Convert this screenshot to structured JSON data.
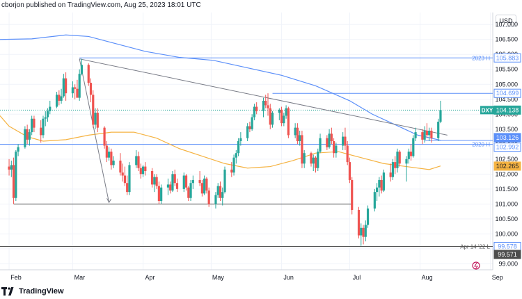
{
  "header": {
    "text": "cborjon published on TradingView.com, Aug 25, 2023 18:01 UTC"
  },
  "footer": {
    "brand": "TradingView"
  },
  "currency": "USD",
  "colors": {
    "up": "#26a69a",
    "down": "#ef5350",
    "sma_long": "#5b8ff9",
    "sma_short": "#f5b342",
    "hline": "#5b8ff9",
    "trend": "#787b86",
    "grid": "#f0f3fa"
  },
  "chart_data": {
    "type": "candlestick",
    "symbol": "DXY",
    "y_ticks": [
      "107.000",
      "106.500",
      "106.000",
      "105.500",
      "105.000",
      "104.500",
      "104.000",
      "103.500",
      "103.000",
      "102.500",
      "102.000",
      "101.500",
      "101.000",
      "100.500",
      "100.000",
      "99.500",
      "99.000"
    ],
    "ylim": [
      98.8,
      107.4
    ],
    "x_ticks": [
      {
        "label": "Feb",
        "day": 0
      },
      {
        "label": "Mar",
        "day": 28
      },
      {
        "label": "Apr",
        "day": 59
      },
      {
        "label": "May",
        "day": 89
      },
      {
        "label": "Jun",
        "day": 120
      },
      {
        "label": "Jul",
        "day": 150
      },
      {
        "label": "Aug",
        "day": 181
      },
      {
        "label": "Sep",
        "day": 212
      }
    ],
    "xlim": [
      -4,
      213
    ],
    "candles": [
      [
        0,
        102.25,
        102.5,
        101.95,
        102.15
      ],
      [
        1,
        102.15,
        102.45,
        101.9,
        102.3
      ],
      [
        2,
        102.3,
        102.55,
        101.0,
        101.2
      ],
      [
        3,
        101.2,
        102.8,
        101.1,
        102.75
      ],
      [
        4,
        102.75,
        103.0,
        102.6,
        102.9
      ],
      [
        7,
        102.9,
        103.6,
        102.85,
        103.5
      ],
      [
        8,
        103.5,
        103.65,
        103.0,
        103.15
      ],
      [
        9,
        103.15,
        103.5,
        102.95,
        103.4
      ],
      [
        10,
        103.4,
        103.95,
        103.3,
        103.85
      ],
      [
        11,
        103.85,
        103.95,
        103.4,
        103.55
      ],
      [
        14,
        103.55,
        103.8,
        103.05,
        103.3
      ],
      [
        15,
        103.3,
        103.95,
        103.2,
        103.85
      ],
      [
        16,
        103.85,
        104.1,
        103.6,
        103.9
      ],
      [
        17,
        103.9,
        104.2,
        103.75,
        104.1
      ],
      [
        18,
        104.1,
        104.45,
        104.0,
        104.25
      ],
      [
        21,
        104.25,
        104.75,
        104.2,
        104.65
      ],
      [
        22,
        104.65,
        104.8,
        104.3,
        104.45
      ],
      [
        23,
        104.45,
        104.85,
        104.35,
        104.6
      ],
      [
        24,
        104.6,
        105.35,
        104.55,
        105.2
      ],
      [
        25,
        105.2,
        105.4,
        104.45,
        104.7
      ],
      [
        28,
        104.7,
        105.1,
        104.55,
        104.9
      ],
      [
        29,
        104.9,
        105.0,
        104.5,
        104.85
      ],
      [
        30,
        104.85,
        105.15,
        104.6,
        104.55
      ],
      [
        31,
        104.55,
        105.5,
        104.45,
        105.35
      ],
      [
        32,
        105.35,
        105.85,
        105.3,
        105.65
      ],
      [
        35,
        105.65,
        105.7,
        104.95,
        105.05
      ],
      [
        36,
        105.05,
        105.2,
        104.4,
        104.65
      ],
      [
        37,
        104.65,
        104.8,
        103.55,
        103.65
      ],
      [
        38,
        103.65,
        104.2,
        103.5,
        104.05
      ],
      [
        39,
        104.05,
        104.2,
        103.4,
        103.55
      ],
      [
        42,
        103.55,
        103.6,
        102.85,
        102.95
      ],
      [
        43,
        102.95,
        103.1,
        102.4,
        102.55
      ],
      [
        44,
        102.55,
        102.9,
        102.45,
        102.75
      ],
      [
        45,
        102.75,
        102.85,
        102.15,
        102.3
      ],
      [
        46,
        102.3,
        102.6,
        102.2,
        102.45
      ],
      [
        49,
        102.45,
        102.7,
        101.95,
        102.05
      ],
      [
        50,
        102.05,
        102.35,
        101.75,
        101.95
      ],
      [
        51,
        101.95,
        102.25,
        101.6,
        101.7
      ],
      [
        52,
        101.7,
        101.95,
        101.3,
        101.4
      ],
      [
        53,
        101.4,
        102.4,
        101.3,
        102.3
      ],
      [
        56,
        102.3,
        102.8,
        102.2,
        102.6
      ],
      [
        57,
        102.6,
        102.75,
        102.1,
        102.2
      ],
      [
        58,
        102.2,
        102.35,
        101.85,
        102.0
      ],
      [
        59,
        102.0,
        102.3,
        101.9,
        102.25
      ],
      [
        60,
        102.25,
        102.4,
        101.95,
        102.1
      ],
      [
        63,
        102.1,
        102.2,
        101.55,
        101.65
      ],
      [
        64,
        101.65,
        102.0,
        101.4,
        101.9
      ],
      [
        65,
        101.9,
        102.0,
        101.5,
        101.6
      ],
      [
        66,
        101.6,
        101.75,
        101.0,
        101.1
      ],
      [
        67,
        101.1,
        101.65,
        101.0,
        101.55
      ],
      [
        70,
        101.55,
        101.85,
        101.3,
        101.65
      ],
      [
        71,
        101.65,
        101.75,
        101.35,
        101.45
      ],
      [
        72,
        101.45,
        102.1,
        101.4,
        102.0
      ],
      [
        73,
        102.0,
        102.15,
        101.6,
        101.7
      ],
      [
        74,
        101.7,
        101.85,
        101.4,
        101.5
      ],
      [
        77,
        101.5,
        102.05,
        101.4,
        101.95
      ],
      [
        78,
        101.95,
        102.0,
        101.45,
        101.55
      ],
      [
        79,
        101.55,
        101.6,
        101.1,
        101.2
      ],
      [
        80,
        101.2,
        101.8,
        101.1,
        101.7
      ],
      [
        81,
        101.7,
        101.95,
        101.5,
        101.8
      ],
      [
        84,
        101.8,
        102.1,
        101.6,
        101.7
      ],
      [
        85,
        101.7,
        101.8,
        101.25,
        101.35
      ],
      [
        86,
        101.35,
        101.95,
        101.3,
        101.85
      ],
      [
        87,
        101.85,
        101.9,
        101.35,
        101.45
      ],
      [
        88,
        101.45,
        101.55,
        100.9,
        101.0
      ],
      [
        91,
        101.0,
        101.4,
        100.85,
        101.3
      ],
      [
        92,
        101.3,
        101.7,
        101.2,
        101.6
      ],
      [
        93,
        101.6,
        101.75,
        101.1,
        101.2
      ],
      [
        94,
        101.2,
        101.55,
        100.95,
        101.4
      ],
      [
        95,
        101.4,
        102.25,
        101.35,
        102.15
      ],
      [
        98,
        102.15,
        102.4,
        101.9,
        102.05
      ],
      [
        99,
        102.05,
        102.65,
        101.95,
        102.55
      ],
      [
        100,
        102.55,
        102.8,
        102.35,
        102.7
      ],
      [
        101,
        102.7,
        103.2,
        102.6,
        103.1
      ],
      [
        102,
        103.1,
        103.4,
        102.95,
        103.2
      ],
      [
        105,
        103.2,
        103.7,
        103.1,
        103.6
      ],
      [
        106,
        103.6,
        103.75,
        103.4,
        103.5
      ],
      [
        107,
        103.5,
        104.0,
        103.45,
        103.9
      ],
      [
        108,
        103.9,
        104.35,
        103.8,
        104.25
      ],
      [
        109,
        104.25,
        104.4,
        104.0,
        104.1
      ],
      [
        112,
        104.1,
        104.55,
        103.9,
        104.45
      ],
      [
        113,
        104.45,
        104.65,
        104.2,
        104.3
      ],
      [
        114,
        104.3,
        104.7,
        103.95,
        104.2
      ],
      [
        115,
        104.2,
        104.35,
        103.5,
        103.65
      ],
      [
        116,
        103.65,
        104.1,
        103.55,
        104.05
      ],
      [
        119,
        104.05,
        104.2,
        103.8,
        104.15
      ],
      [
        120,
        104.15,
        104.25,
        103.6,
        103.7
      ],
      [
        121,
        103.7,
        104.05,
        103.6,
        103.95
      ],
      [
        122,
        103.95,
        104.3,
        103.85,
        104.2
      ],
      [
        123,
        104.2,
        104.25,
        103.2,
        103.3
      ],
      [
        126,
        103.3,
        103.7,
        103.2,
        103.55
      ],
      [
        127,
        103.55,
        103.7,
        103.0,
        103.1
      ],
      [
        128,
        103.1,
        103.45,
        102.95,
        103.3
      ],
      [
        129,
        103.3,
        103.45,
        102.2,
        102.35
      ],
      [
        130,
        102.35,
        102.8,
        102.2,
        102.7
      ],
      [
        133,
        102.7,
        102.75,
        102.25,
        102.35
      ],
      [
        134,
        102.35,
        102.65,
        102.1,
        102.55
      ],
      [
        135,
        102.55,
        102.6,
        102.05,
        102.2
      ],
      [
        136,
        102.2,
        102.85,
        102.1,
        102.75
      ],
      [
        137,
        102.75,
        103.35,
        102.7,
        103.2
      ],
      [
        140,
        103.2,
        103.3,
        102.8,
        102.9
      ],
      [
        141,
        102.9,
        103.5,
        102.85,
        103.35
      ],
      [
        142,
        103.35,
        103.55,
        103.0,
        103.1
      ],
      [
        143,
        103.1,
        103.2,
        102.55,
        102.7
      ],
      [
        144,
        102.7,
        103.05,
        102.55,
        102.95
      ],
      [
        147,
        102.95,
        103.4,
        102.8,
        103.25
      ],
      [
        148,
        103.25,
        103.55,
        102.8,
        102.95
      ],
      [
        149,
        102.95,
        103.1,
        102.3,
        102.4
      ],
      [
        150,
        102.4,
        102.55,
        101.7,
        101.8
      ],
      [
        151,
        101.8,
        101.9,
        100.65,
        100.8
      ],
      [
        154,
        100.8,
        100.9,
        99.85,
        99.95
      ],
      [
        155,
        99.95,
        100.35,
        99.6,
        100.2
      ],
      [
        156,
        100.2,
        100.3,
        99.65,
        99.9
      ],
      [
        157,
        99.9,
        100.45,
        99.75,
        100.3
      ],
      [
        158,
        100.3,
        100.95,
        100.2,
        100.85
      ],
      [
        161,
        100.85,
        101.5,
        100.75,
        101.4
      ],
      [
        162,
        101.4,
        101.7,
        101.1,
        101.55
      ],
      [
        163,
        101.55,
        101.9,
        101.25,
        101.8
      ],
      [
        164,
        101.8,
        101.95,
        101.35,
        101.45
      ],
      [
        165,
        101.45,
        102.15,
        101.4,
        102.05
      ],
      [
        168,
        102.05,
        102.35,
        101.75,
        101.9
      ],
      [
        169,
        101.9,
        102.5,
        101.8,
        102.4
      ],
      [
        170,
        102.4,
        102.6,
        102.0,
        102.2
      ],
      [
        171,
        102.2,
        102.85,
        102.05,
        102.75
      ],
      [
        172,
        102.75,
        102.8,
        102.25,
        102.35
      ],
      [
        175,
        102.35,
        102.6,
        101.75,
        102.5
      ],
      [
        176,
        102.5,
        102.85,
        102.35,
        102.75
      ],
      [
        177,
        102.75,
        103.0,
        102.45,
        102.6
      ],
      [
        178,
        102.6,
        103.3,
        102.55,
        103.2
      ],
      [
        179,
        103.2,
        103.55,
        103.1,
        103.4
      ],
      [
        182,
        103.4,
        103.5,
        103.0,
        103.15
      ],
      [
        183,
        103.15,
        103.6,
        103.05,
        103.45
      ],
      [
        184,
        103.45,
        103.7,
        103.2,
        103.3
      ],
      [
        185,
        103.3,
        103.55,
        103.1,
        103.45
      ],
      [
        186,
        103.45,
        103.55,
        103.05,
        103.2
      ],
      [
        189,
        103.2,
        103.85,
        103.1,
        103.75
      ],
      [
        190,
        103.75,
        104.45,
        103.7,
        104.14
      ]
    ],
    "sma_long": [
      [
        -4,
        106.5
      ],
      [
        10,
        106.52
      ],
      [
        25,
        106.65
      ],
      [
        35,
        106.6
      ],
      [
        45,
        106.4
      ],
      [
        60,
        106.1
      ],
      [
        75,
        105.9
      ],
      [
        90,
        105.8
      ],
      [
        105,
        105.55
      ],
      [
        120,
        105.3
      ],
      [
        135,
        104.95
      ],
      [
        150,
        104.45
      ],
      [
        160,
        104.0
      ],
      [
        170,
        103.65
      ],
      [
        180,
        103.3
      ],
      [
        190,
        103.13
      ]
    ],
    "sma_short": [
      [
        -4,
        103.95
      ],
      [
        0,
        103.6
      ],
      [
        8,
        103.25
      ],
      [
        15,
        103.1
      ],
      [
        25,
        103.15
      ],
      [
        35,
        103.3
      ],
      [
        45,
        103.4
      ],
      [
        55,
        103.4
      ],
      [
        65,
        103.2
      ],
      [
        75,
        102.85
      ],
      [
        85,
        102.6
      ],
      [
        95,
        102.35
      ],
      [
        105,
        102.2
      ],
      [
        115,
        102.25
      ],
      [
        125,
        102.45
      ],
      [
        135,
        102.7
      ],
      [
        145,
        102.75
      ],
      [
        155,
        102.55
      ],
      [
        165,
        102.35
      ],
      [
        175,
        102.25
      ],
      [
        185,
        102.15
      ],
      [
        190,
        102.27
      ]
    ],
    "hlines": [
      {
        "value": 105.883,
        "label": "2023 H",
        "color": "#5b8ff9",
        "from": 31
      },
      {
        "value": 104.699,
        "label": "",
        "color": "#5b8ff9",
        "from": 116
      },
      {
        "value": 103.126,
        "label": "",
        "color": "#5b8ff9",
        "from": 183
      },
      {
        "value": 102.992,
        "label": "2020 H",
        "color": "#5b8ff9",
        "from": -4
      },
      {
        "value": 101.0,
        "label": "",
        "color": "#555555",
        "from": 2,
        "to": 151
      },
      {
        "value": 99.578,
        "label": "Apr 14 '22 L",
        "color": "#555555",
        "from": -4
      }
    ],
    "trendlines": [
      {
        "x1": 31,
        "y1": 105.85,
        "x2": 193,
        "y2": 103.3
      },
      {
        "x1": 31,
        "y1": 105.85,
        "x2": 44,
        "y2": 101.05
      }
    ],
    "arrow": {
      "x": 44,
      "y": 101.05
    },
    "price_labels": [
      {
        "value": 105.883,
        "text": "105.883",
        "bg": "#ffffff",
        "fg": "#5b8ff9",
        "border": "#5b8ff9"
      },
      {
        "value": 104.699,
        "text": "104.699",
        "bg": "#ffffff",
        "fg": "#5b8ff9",
        "border": "#5b8ff9"
      },
      {
        "value": 104.138,
        "text": "104.138",
        "bg": "#26a69a",
        "fg": "#ffffff",
        "border": "#26a69a",
        "symbol": "DXY"
      },
      {
        "value": 103.126,
        "text": "103.126",
        "bg": "#5b8ff9",
        "fg": "#ffffff",
        "border": "#5b8ff9"
      },
      {
        "value": 102.992,
        "text": "102.992",
        "bg": "#ffffff",
        "fg": "#5b8ff9",
        "border": "#5b8ff9"
      },
      {
        "value": 102.265,
        "text": "102.265",
        "bg": "#f5b342",
        "fg": "#131722",
        "border": "#f5b342"
      },
      {
        "value": 99.578,
        "text": "99.578",
        "bg": "#ffffff",
        "fg": "#5b8ff9",
        "border": "#5b8ff9"
      },
      {
        "value": 99.571,
        "text": "99.571",
        "bg": "#4d4d4d",
        "fg": "#ffffff",
        "border": "#4d4d4d"
      }
    ],
    "last_price_line": 104.138
  }
}
